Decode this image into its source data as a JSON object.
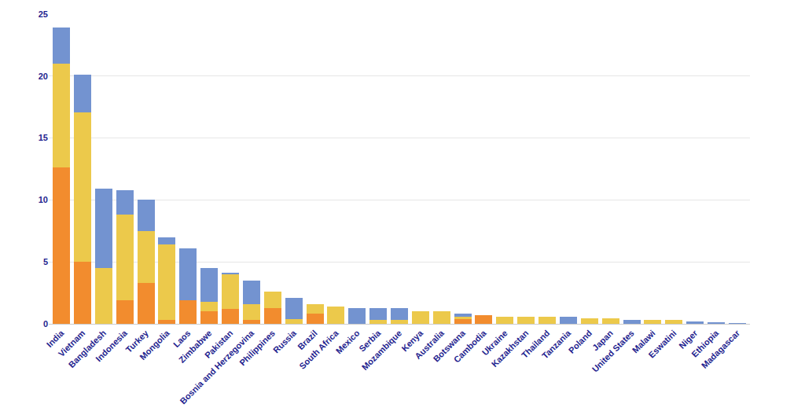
{
  "chart_data": {
    "type": "bar",
    "stacked": true,
    "grid": true,
    "categories": [
      "India",
      "Vietnam",
      "Bangladesh",
      "Indonesia",
      "Turkey",
      "Mongolia",
      "Laos",
      "Zimbabwe",
      "Pakistan",
      "Bosnia and Herzegovina",
      "Philippines",
      "Russia",
      "Brazil",
      "South Africa",
      "Mexico",
      "Serbia",
      "Mozambique",
      "Kenya",
      "Australia",
      "Botswana",
      "Cambodia",
      "Ukraine",
      "Kazakhstan",
      "Thailand",
      "Tanzania",
      "Poland",
      "Japan",
      "United States",
      "Malawi",
      "Eswatini",
      "Niger",
      "Ethiopia",
      "Madagascar"
    ],
    "series": [
      {
        "color": "#f28c2e",
        "values": [
          12.6,
          5.0,
          0,
          1.9,
          3.3,
          0.3,
          1.9,
          1.0,
          1.2,
          0.3,
          1.3,
          0,
          0.8,
          0,
          0,
          0,
          0,
          0,
          0,
          0.4,
          0.7,
          0,
          0,
          0,
          0,
          0,
          0,
          0,
          0,
          0,
          0,
          0,
          0
        ]
      },
      {
        "color": "#ecc94b",
        "values": [
          8.4,
          12.1,
          4.5,
          6.9,
          4.2,
          6.1,
          0,
          0.8,
          2.8,
          1.3,
          1.3,
          0.4,
          0.8,
          1.4,
          0,
          0.3,
          0.3,
          1.0,
          1.0,
          0.2,
          0,
          0.6,
          0.6,
          0.55,
          0,
          0.45,
          0.45,
          0,
          0.3,
          0.3,
          0,
          0,
          0
        ]
      },
      {
        "color": "#7393d0",
        "values": [
          2.9,
          3.0,
          6.4,
          2.0,
          2.5,
          0.6,
          4.2,
          2.7,
          0.1,
          1.9,
          0,
          1.7,
          0,
          0,
          1.3,
          1.0,
          1.0,
          0,
          0,
          0.2,
          0,
          0,
          0,
          0,
          0.55,
          0,
          0,
          0.3,
          0,
          0,
          0.2,
          0.1,
          0.05
        ]
      }
    ],
    "ylim": [
      0,
      25
    ],
    "yticks": [
      0,
      5,
      10,
      15,
      20,
      25
    ]
  }
}
